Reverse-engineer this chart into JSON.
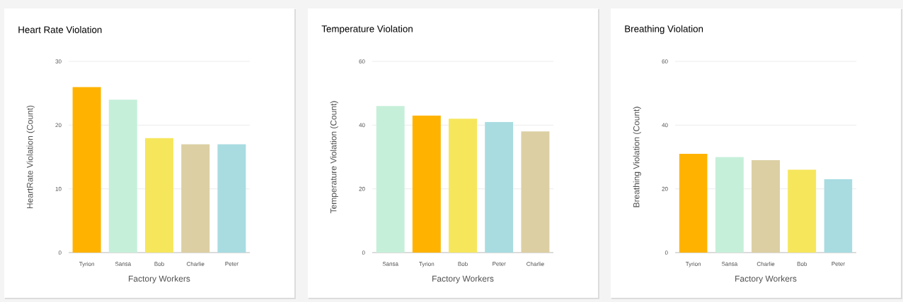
{
  "chart_data": [
    {
      "type": "bar",
      "title": "Heart Rate Violation",
      "xlabel": "Factory Workers",
      "ylabel": "HeartRate Violation (Count)",
      "categories": [
        "Tyrion",
        "Sansa",
        "Bob",
        "Charlie",
        "Peter"
      ],
      "values": [
        26,
        24,
        18,
        17,
        17
      ],
      "colors": [
        "#ffb300",
        "#c6efd9",
        "#f6e65c",
        "#dccfa3",
        "#a8dce1"
      ],
      "ylim": [
        0,
        30
      ],
      "yticks": [
        0,
        10,
        20,
        30
      ],
      "grid": "y"
    },
    {
      "type": "bar",
      "title": "Temperature Violation",
      "xlabel": "Factory Workers",
      "ylabel": "Temperature Violation (Count)",
      "categories": [
        "Sansa",
        "Tyrion",
        "Bob",
        "Peter",
        "Charlie"
      ],
      "values": [
        46,
        43,
        42,
        41,
        38
      ],
      "colors": [
        "#c6efd9",
        "#ffb300",
        "#f6e65c",
        "#a8dce1",
        "#dccfa3"
      ],
      "ylim": [
        0,
        60
      ],
      "yticks": [
        0,
        20,
        40,
        60
      ],
      "grid": "y"
    },
    {
      "type": "bar",
      "title": "Breathing Violation",
      "xlabel": "Factory Workers",
      "ylabel": "Breathing Violation (Count)",
      "categories": [
        "Tyrion",
        "Sansa",
        "Charlie",
        "Bob",
        "Peter"
      ],
      "values": [
        31,
        30,
        29,
        26,
        23
      ],
      "colors": [
        "#ffb300",
        "#c6efd9",
        "#dccfa3",
        "#f6e65c",
        "#a8dce1"
      ],
      "ylim": [
        0,
        60
      ],
      "yticks": [
        0,
        20,
        40,
        60
      ],
      "grid": "y"
    }
  ]
}
